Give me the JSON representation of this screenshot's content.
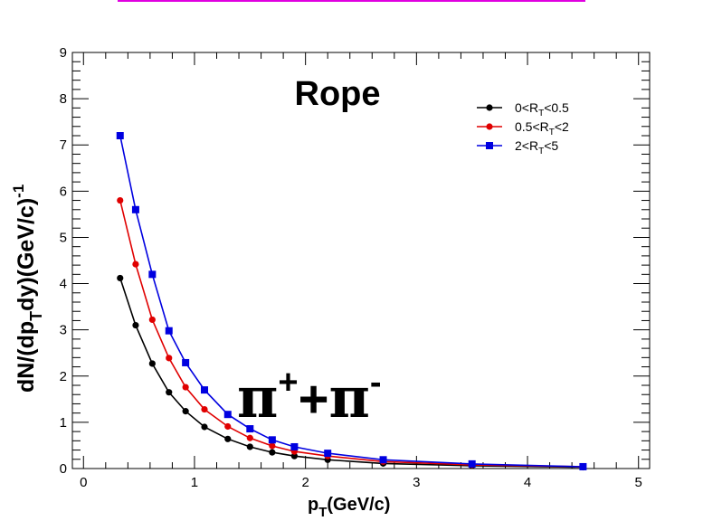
{
  "chart_data": {
    "type": "line",
    "title": "Rope",
    "annotation": {
      "base": "π",
      "sup1": "+",
      "plus": "+",
      "sup2": "-"
    },
    "xlabel": {
      "main": "p",
      "sub": "T",
      "rest": "(GeV/c)"
    },
    "ylabel": {
      "part1": "dN/(dp",
      "sub": "T",
      "part2": "dy)(GeV/c)",
      "sup": "-1"
    },
    "xlim": [
      -0.1,
      5.1
    ],
    "ylim": [
      0,
      9
    ],
    "xticks": [
      "0",
      "1",
      "2",
      "3",
      "4",
      "5"
    ],
    "yticks": [
      "0",
      "1",
      "2",
      "3",
      "4",
      "5",
      "6",
      "7",
      "8",
      "9"
    ],
    "grid": false,
    "legend_position": "top-right",
    "series": [
      {
        "label": {
          "pre": "0<R",
          "sub": "T",
          "post": "<0.5"
        },
        "color": "#000000",
        "marker": "circle",
        "x": [
          0.33,
          0.47,
          0.62,
          0.77,
          0.92,
          1.09,
          1.3,
          1.5,
          1.7,
          1.9,
          2.2,
          2.7,
          3.5,
          4.5
        ],
        "y": [
          4.12,
          3.1,
          2.27,
          1.65,
          1.24,
          0.9,
          0.64,
          0.47,
          0.35,
          0.27,
          0.19,
          0.11,
          0.06,
          0.03
        ]
      },
      {
        "label": {
          "pre": "0.5<R",
          "sub": "T",
          "post": "<2"
        },
        "color": "#e00000",
        "marker": "circle",
        "x": [
          0.33,
          0.47,
          0.62,
          0.77,
          0.92,
          1.09,
          1.3,
          1.5,
          1.7,
          1.9,
          2.2,
          2.7,
          3.5,
          4.5
        ],
        "y": [
          5.8,
          4.42,
          3.22,
          2.39,
          1.76,
          1.28,
          0.91,
          0.66,
          0.49,
          0.37,
          0.27,
          0.15,
          0.08,
          0.04
        ]
      },
      {
        "label": {
          "pre": "2<R",
          "sub": "T",
          "post": "<5"
        },
        "color": "#0000e0",
        "marker": "square",
        "x": [
          0.33,
          0.47,
          0.62,
          0.77,
          0.92,
          1.09,
          1.3,
          1.5,
          1.7,
          1.9,
          2.2,
          2.7,
          3.5,
          4.5
        ],
        "y": [
          7.2,
          5.6,
          4.2,
          2.98,
          2.29,
          1.7,
          1.17,
          0.86,
          0.62,
          0.47,
          0.33,
          0.19,
          0.1,
          0.04
        ]
      }
    ],
    "colors": {
      "top_line": "#e000e0"
    }
  }
}
